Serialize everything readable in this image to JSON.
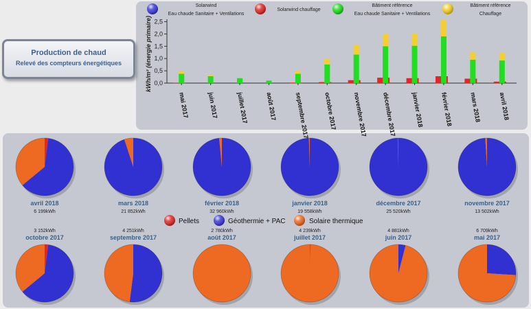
{
  "title": {
    "main": "Production de chaud",
    "sub": "Relevé des compteurs énergétiques"
  },
  "colors": {
    "red": "#e02828",
    "green": "#22dd22",
    "yellow": "#f5cf30",
    "blue": "#3131d2",
    "orange": "#ee6a22",
    "panel": "#c5c8d1"
  },
  "legend_top": [
    {
      "icon": "blue-ball-icon",
      "color": "#3a3ad8",
      "line1": "Solarwind",
      "line2": "Eau chaude Sanitaire + Ventilations"
    },
    {
      "icon": "red-ball-icon",
      "color": "#e02828",
      "line1": "Solarwind chauffage",
      "line2": ""
    },
    {
      "icon": "green-ball-icon",
      "color": "#22dd22",
      "line1": "Bâtiment référence",
      "line2": "Eau chaude Sanitaire + Ventilations"
    },
    {
      "icon": "yellow-ball-icon",
      "color": "#f5d020",
      "line1": "Bâtiment référence",
      "line2": "Chauffage"
    }
  ],
  "legend_pie": [
    {
      "icon": "red-ball-icon",
      "color": "#e02828",
      "label": "Pellets"
    },
    {
      "icon": "blue-ball-icon",
      "color": "#3a3ad8",
      "label": "Géothermie + PAC"
    },
    {
      "icon": "orange-ball-icon",
      "color": "#ee6a22",
      "label": "Solaire thermique"
    }
  ],
  "chart_data": [
    {
      "type": "bar",
      "ylabel": "kWh/m² (énergie primaire)",
      "ylim": [
        0,
        2.6
      ],
      "yticks": [
        "0,0",
        "0,5",
        "1,0",
        "1,5",
        "2,0",
        "2,5"
      ],
      "grid": false,
      "categories": [
        "mai 2017",
        "juin 2017",
        "juillet 2017",
        "août 2017",
        "septembre 2017",
        "octobre 2017",
        "novembre 2017",
        "décembre 2017",
        "janvier 2018",
        "février 2018",
        "mars 2018",
        "avril 2018"
      ],
      "series": [
        {
          "name": "Solarwind Eau chaude Sanitaire + Ventilations",
          "color": "#3131d2",
          "values": [
            0,
            0,
            0,
            0,
            0,
            0,
            0,
            0,
            0,
            0,
            0,
            0
          ]
        },
        {
          "name": "Solarwind chauffage",
          "color": "#e02828",
          "values": [
            0.01,
            0.0,
            0.0,
            0.0,
            0.02,
            0.04,
            0.12,
            0.22,
            0.2,
            0.28,
            0.18,
            0.06
          ]
        },
        {
          "name": "Bâtiment référence Eau chaude Sanitaire + Ventilations",
          "color": "#22dd22",
          "values": [
            0.38,
            0.28,
            0.2,
            0.1,
            0.38,
            0.76,
            1.16,
            1.5,
            1.52,
            1.9,
            0.95,
            0.92
          ]
        },
        {
          "name": "Bâtiment référence Chauffage",
          "color": "#f5cf30",
          "values": [
            0.1,
            0.06,
            0.0,
            0.0,
            0.12,
            0.22,
            0.38,
            0.5,
            0.5,
            0.68,
            0.3,
            0.32
          ]
        }
      ]
    },
    {
      "type": "pie",
      "series_names": [
        "Pellets",
        "Géothermie + PAC",
        "Solaire thermique"
      ],
      "colors": [
        "#e02828",
        "#3131d2",
        "#ee6a22"
      ],
      "pies": [
        {
          "label": "avril 2018",
          "total": "6 199kWh",
          "values": [
            0.02,
            0.62,
            0.36
          ]
        },
        {
          "label": "mars 2018",
          "total": "21 852kWh",
          "values": [
            0.0,
            0.95,
            0.05
          ]
        },
        {
          "label": "février 2018",
          "total": "32 960kWh",
          "values": [
            0.0,
            0.985,
            0.015
          ]
        },
        {
          "label": "janvier 2018",
          "total": "19 558kWh",
          "values": [
            0.0,
            0.995,
            0.005
          ]
        },
        {
          "label": "décembre 2017",
          "total": "25 520kWh",
          "values": [
            0.0,
            0.998,
            0.002
          ]
        },
        {
          "label": "novembre 2017",
          "total": "13 502kWh",
          "values": [
            0.0,
            0.99,
            0.01
          ]
        },
        {
          "label": "octobre 2017",
          "total": "3 152kWh",
          "values": [
            0.02,
            0.62,
            0.36
          ]
        },
        {
          "label": "septembre 2017",
          "total": "4 251kWh",
          "values": [
            0.0,
            0.52,
            0.48
          ]
        },
        {
          "label": "août 2017",
          "total": "2 780kWh",
          "values": [
            0.0,
            0.0,
            1.0
          ]
        },
        {
          "label": "juillet 2017",
          "total": "4 239kWh",
          "values": [
            0.0,
            0.002,
            0.998
          ]
        },
        {
          "label": "juin 2017",
          "total": "4 881kWh",
          "values": [
            0.0,
            0.04,
            0.96
          ]
        },
        {
          "label": "mai 2017",
          "total": "6 709kWh",
          "values": [
            0.0,
            0.26,
            0.74
          ]
        }
      ]
    }
  ]
}
